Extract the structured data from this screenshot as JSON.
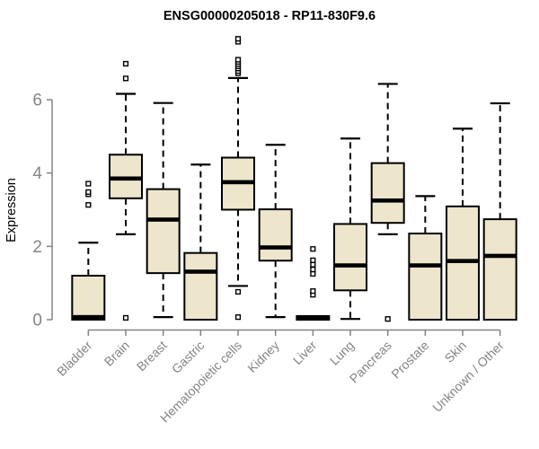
{
  "chart_data": {
    "type": "boxplot",
    "title": "ENSG00000205018 - RP11-830F9.6",
    "ylabel": "Expression",
    "xlabel": "",
    "yticks": [
      0,
      2,
      4,
      6
    ],
    "ylim": [
      0,
      7.8
    ],
    "grid": false,
    "legend": "none",
    "colors": {
      "box_fill": "#EDE6CC",
      "box_border": "#000000",
      "median": "#000000",
      "axis": "#848484",
      "tick_label": "#848484",
      "title": "#000000",
      "outlier_fill": "#FFFFFF"
    },
    "categories": [
      "Bladder",
      "Brain",
      "Breast",
      "Gastric",
      "Hematopoietic cells",
      "Kidney",
      "Liver",
      "Lung",
      "Pancreas",
      "Prostate",
      "Skin",
      "Unknown / Other"
    ],
    "boxes": [
      {
        "label": "Bladder",
        "low": 0.0,
        "q1": 0.0,
        "median": 0.07,
        "q3": 1.2,
        "high": 2.1,
        "outliers": [
          3.13,
          3.42,
          3.48,
          3.71
        ]
      },
      {
        "label": "Brain",
        "low": 2.33,
        "q1": 3.31,
        "median": 3.85,
        "q3": 4.5,
        "high": 6.16,
        "outliers": [
          0.05,
          6.58,
          6.98
        ]
      },
      {
        "label": "Breast",
        "low": 0.07,
        "q1": 1.27,
        "median": 2.73,
        "q3": 3.56,
        "high": 5.91,
        "outliers": []
      },
      {
        "label": "Gastric",
        "low": 0.0,
        "q1": 0.0,
        "median": 1.31,
        "q3": 1.82,
        "high": 4.23,
        "outliers": []
      },
      {
        "label": "Hematopoietic cells",
        "low": 0.92,
        "q1": 3.0,
        "median": 3.75,
        "q3": 4.42,
        "high": 6.59,
        "outliers": [
          0.07,
          0.76,
          6.72,
          6.78,
          6.85,
          6.91,
          6.97,
          7.03,
          7.09,
          7.58,
          7.66
        ]
      },
      {
        "label": "Kidney",
        "low": 0.07,
        "q1": 1.61,
        "median": 1.97,
        "q3": 3.01,
        "high": 4.77,
        "outliers": []
      },
      {
        "label": "Liver",
        "low": 0.0,
        "q1": 0.0,
        "median": 0.03,
        "q3": 0.1,
        "high": 0.12,
        "outliers": [
          0.68,
          0.78,
          1.25,
          1.37,
          1.5,
          1.62,
          1.93
        ]
      },
      {
        "label": "Lung",
        "low": 0.02,
        "q1": 0.8,
        "median": 1.48,
        "q3": 2.61,
        "high": 4.94,
        "outliers": []
      },
      {
        "label": "Pancreas",
        "low": 2.33,
        "q1": 2.64,
        "median": 3.25,
        "q3": 4.27,
        "high": 6.43,
        "outliers": [
          0.02
        ]
      },
      {
        "label": "Prostate",
        "low": 0.0,
        "q1": 0.0,
        "median": 1.48,
        "q3": 2.35,
        "high": 3.37,
        "outliers": []
      },
      {
        "label": "Skin",
        "low": 0.0,
        "q1": 0.0,
        "median": 1.6,
        "q3": 3.09,
        "high": 5.21,
        "outliers": []
      },
      {
        "label": "Unknown / Other",
        "low": 0.0,
        "q1": 0.0,
        "median": 1.74,
        "q3": 2.74,
        "high": 5.9,
        "outliers": []
      }
    ]
  }
}
